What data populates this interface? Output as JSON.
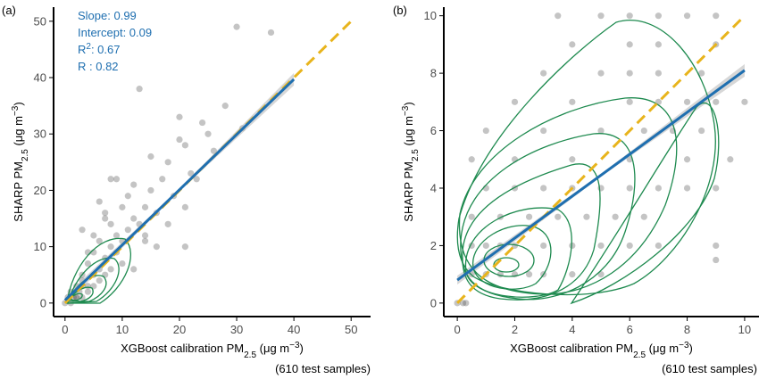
{
  "chart_data": [
    {
      "type": "scatter",
      "panel_label": "(a)",
      "annotations": [
        [
          "Slope: 0.99"
        ],
        [
          "Intercept: 0.09"
        ],
        [
          "R",
          "2",
          ": 0.67"
        ],
        [
          "R : 0.82"
        ]
      ],
      "x_label": [
        "XGBoost calibration PM",
        "2.5",
        " (μg m",
        "−3",
        ")"
      ],
      "y_label": [
        "SHARP PM",
        "2.5",
        " (μg m",
        "−3",
        ")"
      ],
      "note": "(610 test samples)",
      "xlim": [
        -2,
        53.4
      ],
      "ylim": [
        -2.4,
        52.5
      ],
      "xticks": [
        0,
        10,
        20,
        30,
        40,
        50
      ],
      "yticks": [
        0,
        10,
        20,
        30,
        40,
        50
      ],
      "series": [
        {
          "type": "scatter",
          "color": "#555555",
          "x": [
            0,
            0.5,
            1,
            1,
            1.5,
            2,
            2,
            2.5,
            3,
            3,
            3,
            4,
            4,
            4,
            5,
            5,
            5,
            6,
            6,
            6,
            7,
            7,
            7,
            8,
            8,
            8,
            9,
            9,
            10,
            10,
            10,
            11,
            11,
            12,
            12,
            13,
            13,
            14,
            14,
            15,
            15,
            16,
            17,
            18,
            19,
            20,
            20,
            21,
            22,
            23,
            24,
            25,
            26,
            28,
            30,
            31,
            36,
            2,
            3,
            4,
            5,
            6,
            3,
            7,
            8,
            9,
            12,
            14,
            16,
            18,
            21,
            21
          ],
          "values": [
            0,
            1,
            0,
            2,
            1,
            3,
            1,
            2,
            5,
            1,
            4,
            3,
            7,
            2,
            5,
            9,
            3,
            6,
            11,
            4,
            8,
            15,
            5,
            10,
            14,
            6,
            12,
            22,
            11,
            17,
            7,
            13,
            19,
            15,
            21,
            14,
            38,
            17,
            12,
            20,
            26,
            16,
            22,
            25,
            19,
            29,
            33,
            17,
            23,
            22,
            32,
            30,
            27,
            35,
            49,
            31,
            48,
            1,
            3,
            9,
            12,
            18,
            13,
            16,
            22,
            9,
            6,
            11,
            10,
            14,
            10,
            28
          ]
        },
        {
          "type": "line",
          "color": "#e8b41c",
          "dashed": true,
          "x": [
            0,
            50
          ],
          "values": [
            0,
            50
          ]
        },
        {
          "type": "line",
          "color": "#1f6fb0",
          "dashed": false,
          "x": [
            0,
            40
          ],
          "values": [
            0.5,
            39.7
          ]
        }
      ]
    },
    {
      "type": "scatter",
      "panel_label": "(b)",
      "x_label": [
        "XGBoost calibration PM",
        "2.5",
        " (μg m",
        "−3",
        ")"
      ],
      "y_label": [
        "SHARP PM",
        "2.5",
        " (μg m",
        "−3",
        ")"
      ],
      "note": "(610 test samples)",
      "xlim": [
        -0.47,
        10.5
      ],
      "ylim": [
        -0.47,
        10.3
      ],
      "xticks": [
        0,
        2,
        4,
        6,
        8,
        10
      ],
      "yticks": [
        0,
        2,
        4,
        6,
        8,
        10
      ],
      "series": [
        {
          "type": "scatter",
          "color": "#555555",
          "x": [
            0,
            0.2,
            0.5,
            1,
            1.5,
            2,
            2.5,
            3,
            4,
            5,
            0.5,
            1,
            1.5,
            2,
            3,
            4,
            5,
            6,
            7,
            9,
            0.5,
            1.5,
            2.5,
            3.5,
            4.5,
            5.5,
            6.5,
            1,
            2,
            3,
            4,
            5,
            6,
            7,
            8,
            9,
            0.5,
            2,
            4,
            6,
            8,
            9.5,
            1,
            3,
            5,
            6.5,
            7.5,
            8.5,
            2,
            4,
            6,
            7,
            8,
            9,
            10,
            3,
            5,
            6,
            7,
            8.5,
            4,
            6,
            7,
            9,
            3.5,
            5,
            6,
            7,
            8,
            9,
            0.3,
            9
          ],
          "values": [
            0,
            0,
            1,
            1,
            1,
            1,
            1,
            1,
            1,
            1,
            2,
            2,
            2,
            2,
            2,
            2,
            2,
            2,
            2,
            2,
            3,
            3,
            3,
            3,
            3,
            3,
            3,
            4,
            4,
            4,
            4,
            4,
            4,
            4,
            4,
            4,
            5,
            5,
            5,
            5,
            5,
            5,
            6,
            6,
            6,
            6,
            6,
            6,
            7,
            7,
            7,
            7,
            7,
            7,
            7,
            8,
            8,
            8,
            8,
            8,
            9,
            9,
            9,
            9,
            10,
            10,
            10,
            10,
            10,
            10,
            0,
            1.5
          ]
        },
        {
          "type": "line",
          "color": "#e8b41c",
          "dashed": true,
          "x": [
            0,
            10
          ],
          "values": [
            0,
            10
          ]
        },
        {
          "type": "line",
          "color": "#1f6fb0",
          "dashed": false,
          "x": [
            0,
            10
          ],
          "values": [
            0.8,
            8.1
          ]
        }
      ]
    }
  ]
}
